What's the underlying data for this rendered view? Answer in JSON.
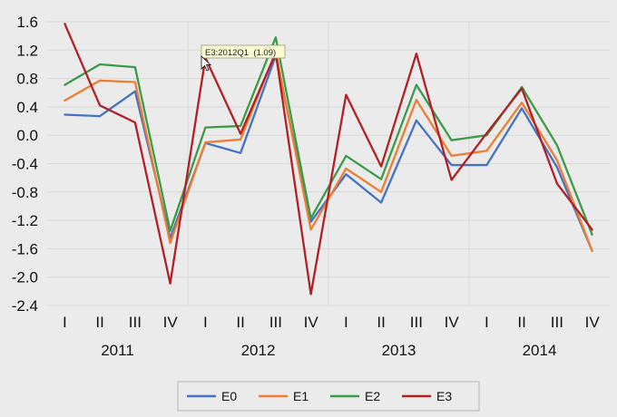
{
  "chart_data": {
    "type": "line",
    "title": "",
    "xlabel": "",
    "ylabel": "",
    "ylim": [
      -2.4,
      1.6
    ],
    "yticks": [
      1.6,
      1.2,
      0.8,
      0.4,
      0.0,
      -0.4,
      -0.8,
      -1.2,
      -1.6,
      -2.0,
      -2.4
    ],
    "ytick_labels": [
      "1.6",
      "1.2",
      "0.8",
      "0.4",
      "0.0",
      "-0.4",
      "-0.8",
      "-1.2",
      "-1.6",
      "-2.0",
      "-2.4"
    ],
    "categories": [
      "I",
      "II",
      "III",
      "IV",
      "I",
      "II",
      "III",
      "IV",
      "I",
      "II",
      "III",
      "IV",
      "I",
      "II",
      "III",
      "IV"
    ],
    "years": [
      "2011",
      "2012",
      "2013",
      "2014"
    ],
    "grid": true,
    "legend_position": "bottom",
    "series": [
      {
        "name": "E0",
        "color": "#4472c4",
        "values": [
          0.29,
          0.27,
          0.62,
          -1.45,
          -0.11,
          -0.25,
          1.12,
          -1.22,
          -0.55,
          -0.95,
          0.21,
          -0.42,
          -0.42,
          0.38,
          -0.45,
          -1.63
        ]
      },
      {
        "name": "E1",
        "color": "#ed7d31",
        "values": [
          0.49,
          0.77,
          0.75,
          -1.52,
          -0.1,
          -0.06,
          1.18,
          -1.33,
          -0.47,
          -0.8,
          0.5,
          -0.29,
          -0.22,
          0.46,
          -0.35,
          -1.63
        ]
      },
      {
        "name": "E2",
        "color": "#3a9b48",
        "values": [
          0.71,
          1.0,
          0.96,
          -1.35,
          0.11,
          0.13,
          1.38,
          -1.17,
          -0.29,
          -0.62,
          0.71,
          -0.07,
          0.0,
          0.68,
          -0.14,
          -1.4
        ]
      },
      {
        "name": "E3",
        "color": "#b21f24",
        "values": [
          1.57,
          0.42,
          0.18,
          -2.09,
          1.09,
          0.02,
          1.16,
          -2.24,
          0.57,
          -0.44,
          1.15,
          -0.63,
          0.03,
          0.66,
          -0.68,
          -1.33
        ]
      }
    ],
    "tooltip": {
      "text": "E3:2012Q1  (1.09)"
    }
  }
}
